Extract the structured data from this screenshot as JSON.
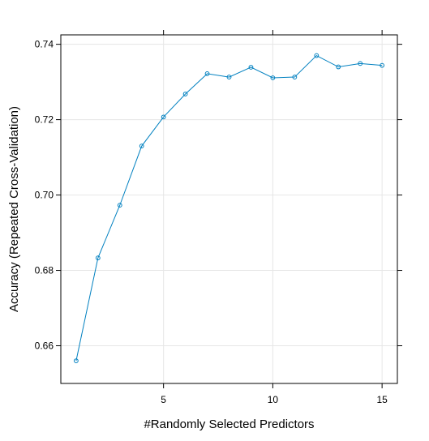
{
  "chart_data": {
    "type": "line",
    "xlabel": "#Randomly Selected Predictors",
    "ylabel": "Accuracy (Repeated Cross-Validation)",
    "xlim": [
      0.3,
      15.7
    ],
    "ylim": [
      0.65,
      0.7425
    ],
    "x_ticks": [
      5,
      10,
      15
    ],
    "x_tick_labels": [
      "5",
      "10",
      "15"
    ],
    "y_ticks": [
      0.66,
      0.68,
      0.7,
      0.72,
      0.74
    ],
    "y_tick_labels": [
      "0.66",
      "0.68",
      "0.70",
      "0.72",
      "0.74"
    ],
    "grid": true,
    "series": [
      {
        "color": "#0080c0",
        "x": [
          1,
          2,
          3,
          4,
          5,
          6,
          7,
          8,
          9,
          10,
          11,
          12,
          13,
          14,
          15
        ],
        "y": [
          0.656,
          0.6833,
          0.6973,
          0.713,
          0.7207,
          0.7268,
          0.7322,
          0.7313,
          0.7339,
          0.7311,
          0.7313,
          0.737,
          0.734,
          0.7349,
          0.7344
        ]
      }
    ]
  }
}
